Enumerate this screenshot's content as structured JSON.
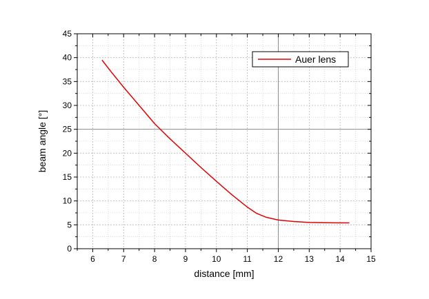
{
  "chart_data": {
    "type": "line",
    "xlabel": "distance [mm]",
    "ylabel": "beam angle [°]",
    "xlim": [
      5.5,
      15
    ],
    "ylim": [
      0,
      45
    ],
    "x_ticks": [
      6,
      7,
      8,
      9,
      10,
      11,
      12,
      13,
      14,
      15
    ],
    "y_ticks": [
      0,
      5,
      10,
      15,
      20,
      25,
      30,
      35,
      40,
      45
    ],
    "grid": true,
    "legend_position": "top-right",
    "series": [
      {
        "name": "Auer lens",
        "color": "#e00000",
        "x": [
          6.3,
          6.6,
          7.0,
          7.5,
          8.0,
          8.5,
          9.0,
          9.5,
          10.0,
          10.5,
          11.0,
          11.3,
          11.6,
          12.0,
          12.5,
          13.0,
          13.5,
          14.0,
          14.3
        ],
        "y": [
          39.5,
          37.0,
          33.8,
          30.0,
          26.2,
          23.0,
          20.0,
          17.0,
          14.1,
          11.3,
          8.7,
          7.4,
          6.6,
          6.0,
          5.7,
          5.5,
          5.45,
          5.4,
          5.4
        ]
      }
    ]
  }
}
